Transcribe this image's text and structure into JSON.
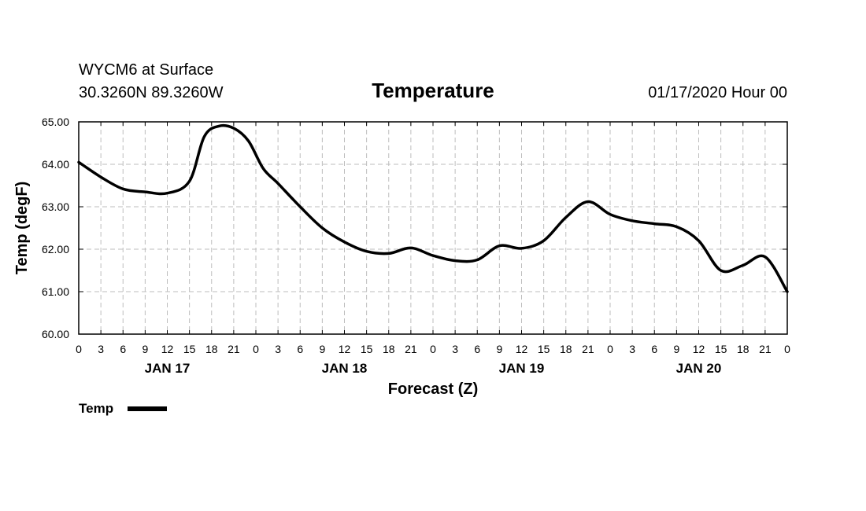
{
  "header": {
    "station": "WYCM6 at Surface",
    "location": "30.3260N 89.3260W",
    "title": "Temperature",
    "datetime": "01/17/2020 Hour 00"
  },
  "chart_data": {
    "type": "line",
    "title": "Temperature",
    "xlabel": "Forecast (Z)",
    "ylabel": "Temp (degF)",
    "ylim": [
      60.0,
      65.0
    ],
    "xlim": [
      0,
      96
    ],
    "grid": true,
    "y_ticks": [
      "60.00",
      "61.00",
      "62.00",
      "63.00",
      "64.00",
      "65.00"
    ],
    "x_tick_labels": [
      "0",
      "3",
      "6",
      "9",
      "12",
      "15",
      "18",
      "21",
      "0",
      "3",
      "6",
      "9",
      "12",
      "15",
      "18",
      "21",
      "0",
      "3",
      "6",
      "9",
      "12",
      "15",
      "18",
      "21",
      "0",
      "3",
      "6",
      "9",
      "12",
      "15",
      "18",
      "21",
      "0"
    ],
    "day_labels": [
      {
        "label": "JAN 17",
        "hour": 12
      },
      {
        "label": "JAN 18",
        "hour": 36
      },
      {
        "label": "JAN 19",
        "hour": 60
      },
      {
        "label": "JAN 20",
        "hour": 84
      }
    ],
    "series": [
      {
        "name": "Temp",
        "color": "#000000",
        "x": [
          0,
          3,
          6,
          9,
          12,
          15,
          17,
          19,
          21,
          23,
          25,
          27,
          30,
          33,
          36,
          39,
          42,
          45,
          48,
          51,
          54,
          57,
          60,
          63,
          66,
          69,
          72,
          75,
          78,
          81,
          84,
          87,
          90,
          93,
          96
        ],
        "y": [
          64.05,
          63.7,
          63.42,
          63.35,
          63.32,
          63.6,
          64.65,
          64.9,
          64.85,
          64.55,
          63.9,
          63.55,
          63.0,
          62.5,
          62.17,
          61.95,
          61.9,
          62.03,
          61.85,
          61.73,
          61.75,
          62.08,
          62.02,
          62.2,
          62.75,
          63.12,
          62.82,
          62.67,
          62.6,
          62.53,
          62.2,
          61.5,
          61.62,
          61.82,
          61.0
        ]
      }
    ]
  },
  "legend": {
    "label": "Temp"
  }
}
